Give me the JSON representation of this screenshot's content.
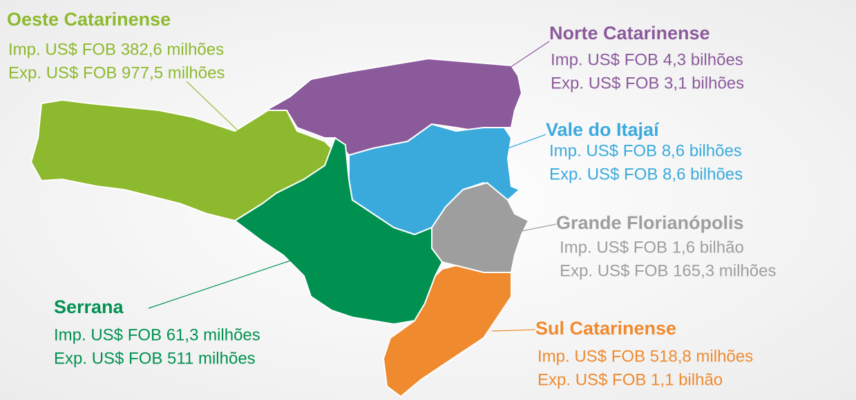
{
  "regions": [
    {
      "name": "Oeste Catarinense",
      "imp": "Imp. US$ FOB 382,6 milhões",
      "exp": "Exp. US$ FOB 977,5 milhões",
      "color": "#8db92e"
    },
    {
      "name": "Norte Catarinense",
      "imp": "Imp. US$ FOB 4,3 bilhões",
      "exp": "Exp. US$ FOB 3,1 bilhões",
      "color": "#8b5a9b"
    },
    {
      "name": "Vale do Itajaí",
      "imp": "Imp. US$ FOB 8,6 bilhões",
      "exp": "Exp. US$ FOB 8,6 bilhões",
      "color": "#3aaadd"
    },
    {
      "name": "Grande Florianópolis",
      "imp": "Imp. US$ FOB 1,6 bilhão",
      "exp": "Exp. US$ FOB 165,3 milhões",
      "color": "#9e9e9e"
    },
    {
      "name": "Serrana",
      "imp": "Imp. US$ FOB 61,3 milhões",
      "exp": "Exp. US$ FOB 511 milhões",
      "color": "#009150"
    },
    {
      "name": "Sul Catarinense",
      "imp": "Imp. US$ FOB 518,8 milhões",
      "exp": "Exp. US$ FOB 1,1 bilhão",
      "color": "#ef8a2e"
    }
  ]
}
